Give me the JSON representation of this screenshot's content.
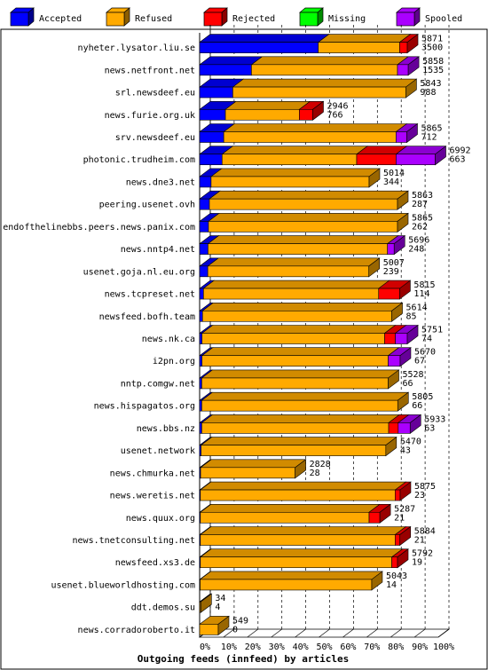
{
  "chart_data": {
    "type": "bar",
    "orientation": "horizontal",
    "stacked": true,
    "three_d": true,
    "title": "Outgoing feeds (innfeed) by articles",
    "xlim": [
      0,
      100
    ],
    "x_ticks": [
      "0%",
      "10%",
      "20%",
      "30%",
      "40%",
      "50%",
      "60%",
      "70%",
      "80%",
      "90%",
      "100%"
    ],
    "grid": true,
    "legend_position": "top",
    "series": [
      {
        "name": "Accepted",
        "color": "#0000ff"
      },
      {
        "name": "Refused",
        "color": "#ffaa00"
      },
      {
        "name": "Rejected",
        "color": "#ff0000"
      },
      {
        "name": "Missing",
        "color": "#00ff00"
      },
      {
        "name": "Spooled",
        "color": "#aa00ff"
      }
    ],
    "rows": [
      {
        "label": "nyheter.lysator.liu.se",
        "total": "5871",
        "accepted": "3500",
        "pct": [
          49.7,
          34.1,
          3.2,
          0,
          0
        ]
      },
      {
        "label": "news.netfront.net",
        "total": "5858",
        "accepted": "1535",
        "pct": [
          21.7,
          61.2,
          0,
          0,
          4.5
        ]
      },
      {
        "label": "srl.newsdeef.eu",
        "total": "5843",
        "accepted": "988",
        "pct": [
          13.9,
          72.5,
          0,
          0,
          0
        ]
      },
      {
        "label": "news.furie.org.uk",
        "total": "2946",
        "accepted": "766",
        "pct": [
          10.8,
          31.0,
          5.6,
          0,
          0
        ]
      },
      {
        "label": "srv.newsdeef.eu",
        "total": "5865",
        "accepted": "712",
        "pct": [
          10.1,
          72.2,
          0,
          0,
          4.5
        ]
      },
      {
        "label": "photonic.trudheim.com",
        "total": "6992",
        "accepted": "663",
        "pct": [
          9.4,
          56.4,
          16.5,
          0,
          16.4
        ]
      },
      {
        "label": "news.dne3.net",
        "total": "5014",
        "accepted": "344",
        "pct": [
          4.8,
          66.2,
          0,
          0,
          0
        ]
      },
      {
        "label": "peering.usenet.ovh",
        "total": "5863",
        "accepted": "287",
        "pct": [
          4.1,
          78.8,
          0,
          0,
          0
        ]
      },
      {
        "label": "endofthelinebbs.peers.news.panix.com",
        "total": "5865",
        "accepted": "262",
        "pct": [
          3.7,
          79.2,
          0,
          0,
          0
        ]
      },
      {
        "label": "news.nntp4.net",
        "total": "5696",
        "accepted": "248",
        "pct": [
          3.5,
          75.2,
          0,
          0,
          2.8
        ]
      },
      {
        "label": "usenet.goja.nl.eu.org",
        "total": "5007",
        "accepted": "239",
        "pct": [
          3.4,
          67.5,
          0,
          0,
          0
        ]
      },
      {
        "label": "news.tcpreset.net",
        "total": "5815",
        "accepted": "114",
        "pct": [
          1.6,
          73.4,
          8.8,
          0,
          0
        ]
      },
      {
        "label": "newsfeed.bofh.team",
        "total": "5614",
        "accepted": "85",
        "pct": [
          1.2,
          79.3,
          0,
          0,
          0
        ]
      },
      {
        "label": "news.nk.ca",
        "total": "5751",
        "accepted": "74",
        "pct": [
          1.0,
          76.5,
          4.5,
          0,
          5.0
        ]
      },
      {
        "label": "i2pn.org",
        "total": "5670",
        "accepted": "67",
        "pct": [
          1.0,
          78.0,
          0,
          0,
          5.0
        ]
      },
      {
        "label": "nntp.comgw.net",
        "total": "5528",
        "accepted": "66",
        "pct": [
          0.9,
          78.1,
          0,
          0,
          0
        ]
      },
      {
        "label": "news.hispagatos.org",
        "total": "5805",
        "accepted": "66",
        "pct": [
          0.9,
          82.1,
          0,
          0,
          0
        ]
      },
      {
        "label": "news.bbs.nz",
        "total": "5933",
        "accepted": "63",
        "pct": [
          0.9,
          78.3,
          4.0,
          0,
          5.0
        ]
      },
      {
        "label": "usenet.network",
        "total": "5470",
        "accepted": "43",
        "pct": [
          0.6,
          77.4,
          0,
          0,
          0
        ]
      },
      {
        "label": "news.chmurka.net",
        "total": "2828",
        "accepted": "28",
        "pct": [
          0.4,
          39.6,
          0,
          0,
          0
        ]
      },
      {
        "label": "news.weretis.net",
        "total": "5875",
        "accepted": "23",
        "pct": [
          0.3,
          81.6,
          2.1,
          0,
          0
        ]
      },
      {
        "label": "news.quux.org",
        "total": "5287",
        "accepted": "21",
        "pct": [
          0.3,
          70.7,
          4.5,
          0,
          0
        ]
      },
      {
        "label": "news.tnetconsulting.net",
        "total": "5884",
        "accepted": "21",
        "pct": [
          0.3,
          81.6,
          2.0,
          0,
          0
        ]
      },
      {
        "label": "newsfeed.xs3.de",
        "total": "5792",
        "accepted": "19",
        "pct": [
          0.3,
          80.2,
          2.4,
          0,
          0
        ]
      },
      {
        "label": "usenet.blueworldhosting.com",
        "total": "5043",
        "accepted": "14",
        "pct": [
          0.2,
          71.9,
          0,
          0,
          0
        ]
      },
      {
        "label": "ddt.demos.su",
        "total": "34",
        "accepted": "4",
        "pct": [
          0.1,
          0.4,
          0,
          0,
          0
        ]
      },
      {
        "label": "news.corradoroberto.it",
        "total": "549",
        "accepted": "0",
        "pct": [
          0,
          7.8,
          0,
          0,
          0
        ]
      }
    ]
  }
}
